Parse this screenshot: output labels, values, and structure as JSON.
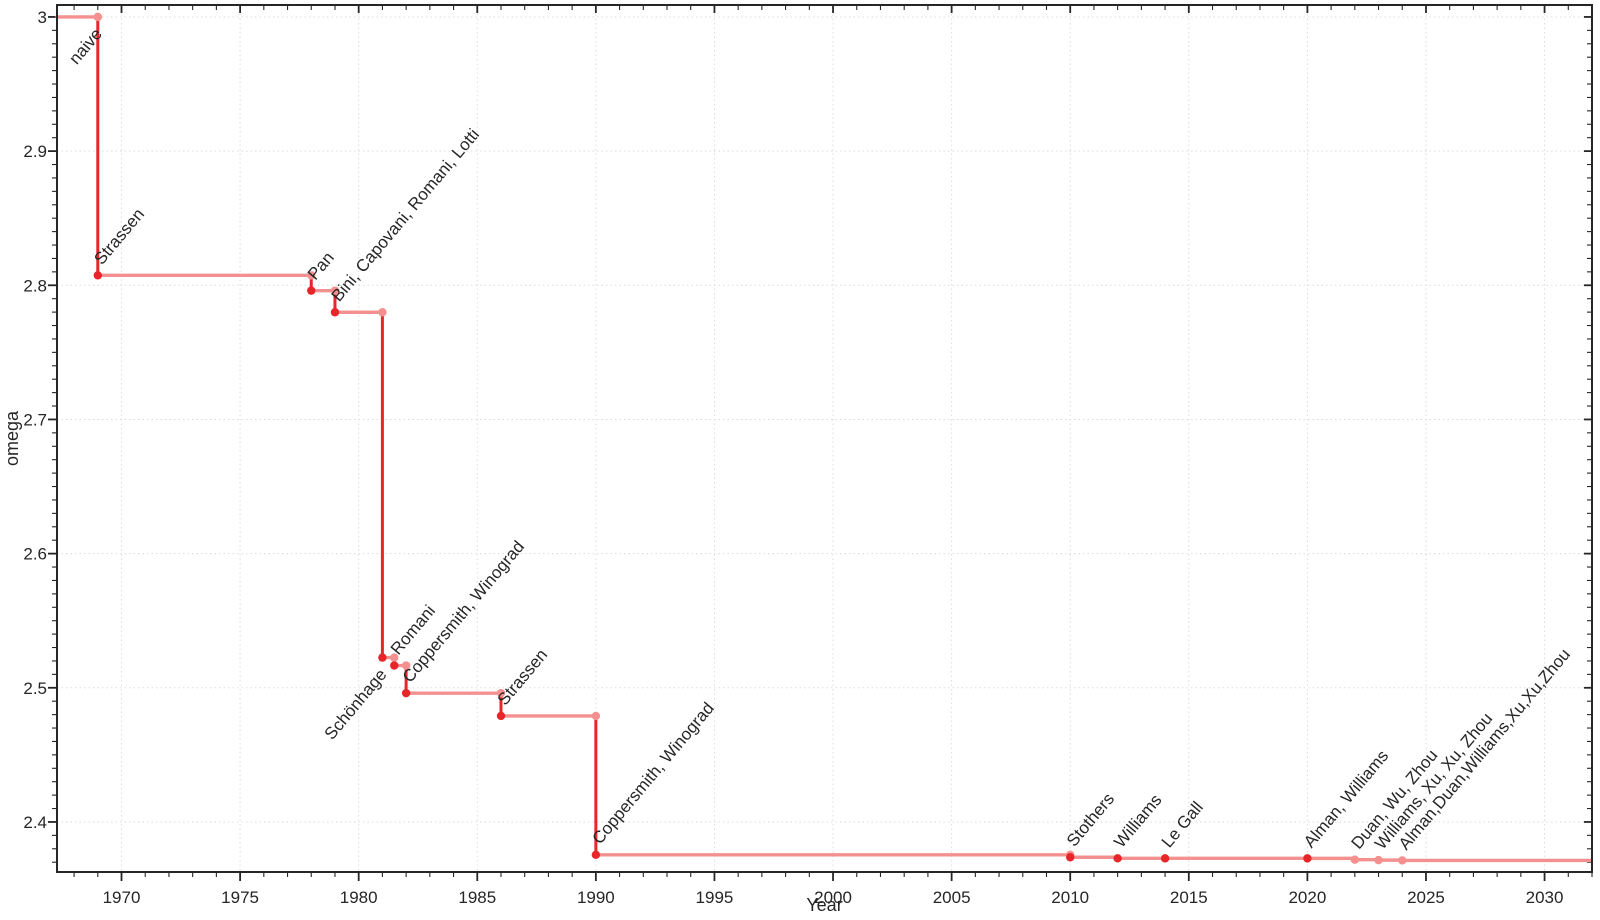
{
  "chart_data": {
    "type": "line",
    "step": "post",
    "title": "",
    "xlabel": "Year",
    "ylabel": "omega",
    "xlim": [
      1967.28,
      2032
    ],
    "ylim": [
      2.3627,
      3.0089
    ],
    "grid": true,
    "legend": false,
    "x_ticks": {
      "values": [
        1970,
        1975,
        1980,
        1985,
        1990,
        1995,
        2000,
        2005,
        2010,
        2015,
        2020,
        2025,
        2030
      ],
      "labels": [
        "1970",
        "1975",
        "1980",
        "1985",
        "1990",
        "1995",
        "2000",
        "2005",
        "2010",
        "2015",
        "2020",
        "2025",
        "2030"
      ],
      "minor_step": 1
    },
    "y_ticks": {
      "values": [
        3.0,
        2.9,
        2.8,
        2.7,
        2.6,
        2.5,
        2.4
      ],
      "labels": [
        "3",
        "2.9",
        "2.8",
        "2.7",
        "2.6",
        "2.5",
        "2.4"
      ],
      "minor_step": 0.01
    },
    "line_start_year": 1967.28,
    "line_end_year": 2032,
    "events": [
      {
        "name": "naive",
        "year": 1969,
        "omega": 3.0,
        "anchor": "end",
        "marker": "light",
        "gray": false
      },
      {
        "name": "Strassen",
        "year": 1969,
        "omega": 2.8074,
        "anchor": "start",
        "marker": "strong",
        "gray": false
      },
      {
        "name": "Pan",
        "year": 1978,
        "omega": 2.796,
        "anchor": "start",
        "marker": "strong",
        "gray": false
      },
      {
        "name": "Bini, Capovani, Romani, Lotti",
        "year": 1979,
        "omega": 2.7799,
        "anchor": "start",
        "marker": "strong",
        "gray": false
      },
      {
        "name": "Schönhage",
        "year": 1981,
        "omega": 2.5225,
        "anchor": "end",
        "marker": "strong",
        "gray": false
      },
      {
        "name": "Romani",
        "year": 1981.5,
        "omega": 2.5166,
        "anchor": "start",
        "marker": "strong",
        "gray": false
      },
      {
        "name": "Coppersmith, Winograd",
        "year": 1982,
        "omega": 2.496,
        "anchor": "start",
        "marker": "strong",
        "gray": false
      },
      {
        "name": "Strassen",
        "year": 1986,
        "omega": 2.479,
        "anchor": "start",
        "marker": "strong",
        "gray": false
      },
      {
        "name": "Coppersmith, Winograd",
        "year": 1990,
        "omega": 2.3755,
        "anchor": "start",
        "marker": "strong",
        "gray": false
      },
      {
        "name": "Stothers",
        "year": 2010,
        "omega": 2.3737,
        "anchor": "start",
        "marker": "strong",
        "gray": false
      },
      {
        "name": "Williams",
        "year": 2012,
        "omega": 2.3729,
        "anchor": "start",
        "marker": "strong",
        "gray": false
      },
      {
        "name": "Le Gall",
        "year": 2014,
        "omega": 2.37287,
        "anchor": "start",
        "marker": "strong",
        "gray": false
      },
      {
        "name": "Alman, Williams",
        "year": 2020,
        "omega": 2.37286,
        "anchor": "start",
        "marker": "strong",
        "gray": false
      },
      {
        "name": "Duan, Wu, Zhou",
        "year": 2022,
        "omega": 2.371866,
        "anchor": "start",
        "marker": "light",
        "gray": true
      },
      {
        "name": "Williams, Xu, Xu, Zhou",
        "year": 2023,
        "omega": 2.371552,
        "anchor": "start",
        "marker": "light",
        "gray": true
      },
      {
        "name": "Alman,Duan,Williams,Xu,Xu,Zhou",
        "year": 2024,
        "omega": 2.371339,
        "anchor": "start",
        "marker": "light",
        "gray": true
      }
    ],
    "colors": {
      "strong_red": "#e8262a",
      "light_red": "#f4908f",
      "grid": "#dcdcdc",
      "axis": "#262626",
      "label_black": "#1c1c1c",
      "label_gray": "#999999"
    }
  }
}
